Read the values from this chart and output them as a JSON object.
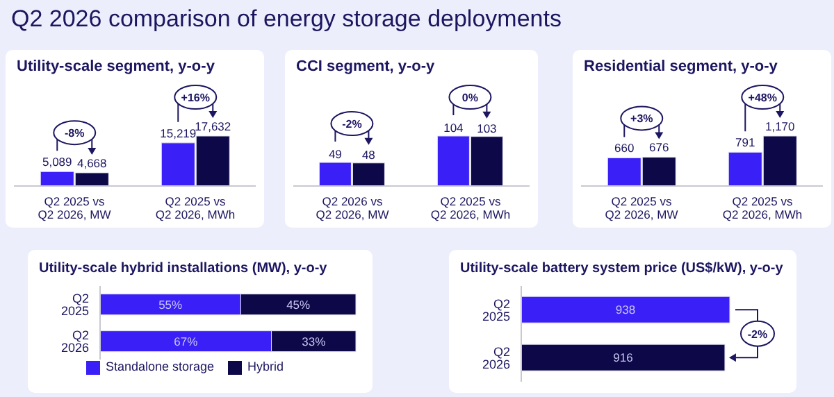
{
  "chart_data": [
    {
      "type": "bar",
      "title": "Q2 2026 comparison of energy storage deployments",
      "subtitle": "Utility-scale segment, y-o-y",
      "categories": [
        "Q2 2025 vs Q2 2026, MW",
        "Q2 2025 vs Q2 2026, MWh"
      ],
      "series": [
        {
          "color": "#3a1ff7",
          "values": [
            5089,
            15219
          ],
          "value_labels": [
            "5,089",
            "15,219"
          ]
        },
        {
          "color": "#0d0847",
          "values": [
            4668,
            17632
          ],
          "value_labels": [
            "4,668",
            "17,632"
          ]
        }
      ],
      "annotations": [
        "-8%",
        "+16%"
      ]
    },
    {
      "type": "bar",
      "title": "CCI segment, y-o-y",
      "categories": [
        "Q2 2026 vs Q2 2026, MW",
        "Q2 2025 vs Q2 2026, MWh"
      ],
      "series": [
        {
          "color": "#3a1ff7",
          "values": [
            49,
            104
          ]
        },
        {
          "color": "#0d0847",
          "values": [
            48,
            103
          ]
        }
      ],
      "annotations": [
        "-2%",
        "0%"
      ],
      "data_labels": true
    },
    {
      "type": "bar",
      "title": "Residential segment, y-o-y",
      "categories": [
        "Q2 2025 vs Q2 2026, MW",
        "Q2 2025 vs Q2 2026, MWh"
      ],
      "series": [
        {
          "color": "#3a1ff7",
          "values": [
            660,
            791
          ],
          "value_labels": [
            "660",
            "791"
          ]
        },
        {
          "color": "#0d0847",
          "values": [
            676,
            1170
          ],
          "value_labels": [
            "676",
            "1,170"
          ]
        }
      ],
      "annotations": [
        "+3%",
        "+48%"
      ]
    },
    {
      "type": "bar",
      "orientation": "horizontal",
      "stacked": true,
      "title": "Utility-scale hybrid installations (MW), y-o-y",
      "categories": [
        "Q2 2025",
        "Q2 2026"
      ],
      "series": [
        {
          "name": "Standalone storage",
          "color": "#3a1ff7",
          "values": [
            55,
            67
          ],
          "value_labels": [
            "55%",
            "67%"
          ]
        },
        {
          "name": "Hybrid",
          "color": "#0d0847",
          "values": [
            45,
            33
          ],
          "value_labels": [
            "45%",
            "33%"
          ]
        }
      ],
      "legend": "bottom"
    },
    {
      "type": "bar",
      "orientation": "horizontal",
      "title": "Utility-scale battery system price (US$/kW), y-o-y",
      "categories": [
        "Q2 2025",
        "Q2 2026"
      ],
      "values": [
        938,
        916
      ],
      "colors": [
        "#3a1ff7",
        "#0d0847"
      ],
      "data_labels": true,
      "annotations": [
        "-2%"
      ]
    }
  ]
}
